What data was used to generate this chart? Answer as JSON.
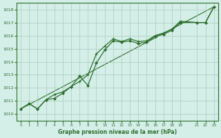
{
  "title": "Graphe pression niveau de la mer (hPa)",
  "background_color": "#d4eee8",
  "grid_color": "#aaccbb",
  "line_color": "#2d6e2d",
  "text_color": "#2d6e2d",
  "xlim": [
    -0.5,
    23.5
  ],
  "ylim": [
    1009.5,
    1018.5
  ],
  "yticks": [
    1010,
    1011,
    1012,
    1013,
    1014,
    1015,
    1016,
    1017,
    1018
  ],
  "xticks": [
    0,
    1,
    2,
    3,
    4,
    5,
    6,
    7,
    8,
    9,
    10,
    11,
    12,
    13,
    14,
    15,
    16,
    17,
    18,
    19,
    21,
    22,
    23
  ],
  "line1_x": [
    0,
    1,
    2,
    3,
    4,
    5,
    6,
    7,
    8,
    9,
    10,
    11,
    12,
    13,
    14,
    15,
    16,
    17,
    18,
    19,
    21,
    22,
    23
  ],
  "line1_y": [
    1010.4,
    1010.8,
    1010.4,
    1011.1,
    1011.5,
    1011.7,
    1012.1,
    1012.5,
    1013.0,
    1014.6,
    1015.2,
    1015.75,
    1015.55,
    1015.75,
    1015.55,
    1015.6,
    1016.0,
    1016.2,
    1016.5,
    1017.1,
    1017.0,
    1017.0,
    1018.2
  ],
  "line2_x": [
    0,
    1,
    2,
    3,
    4,
    5,
    6,
    7,
    8,
    9,
    10,
    11,
    12,
    13,
    14,
    15,
    16,
    17,
    18,
    19,
    21,
    22,
    23
  ],
  "line2_y": [
    1010.4,
    1010.8,
    1010.4,
    1011.1,
    1011.2,
    1011.6,
    1012.1,
    1012.9,
    1012.2,
    1013.9,
    1014.9,
    1015.6,
    1015.5,
    1015.6,
    1015.4,
    1015.5,
    1015.95,
    1016.1,
    1016.4,
    1017.0,
    1017.0,
    1017.0,
    1018.2
  ],
  "trend_x": [
    0,
    23
  ],
  "trend_y": [
    1010.4,
    1018.2
  ]
}
